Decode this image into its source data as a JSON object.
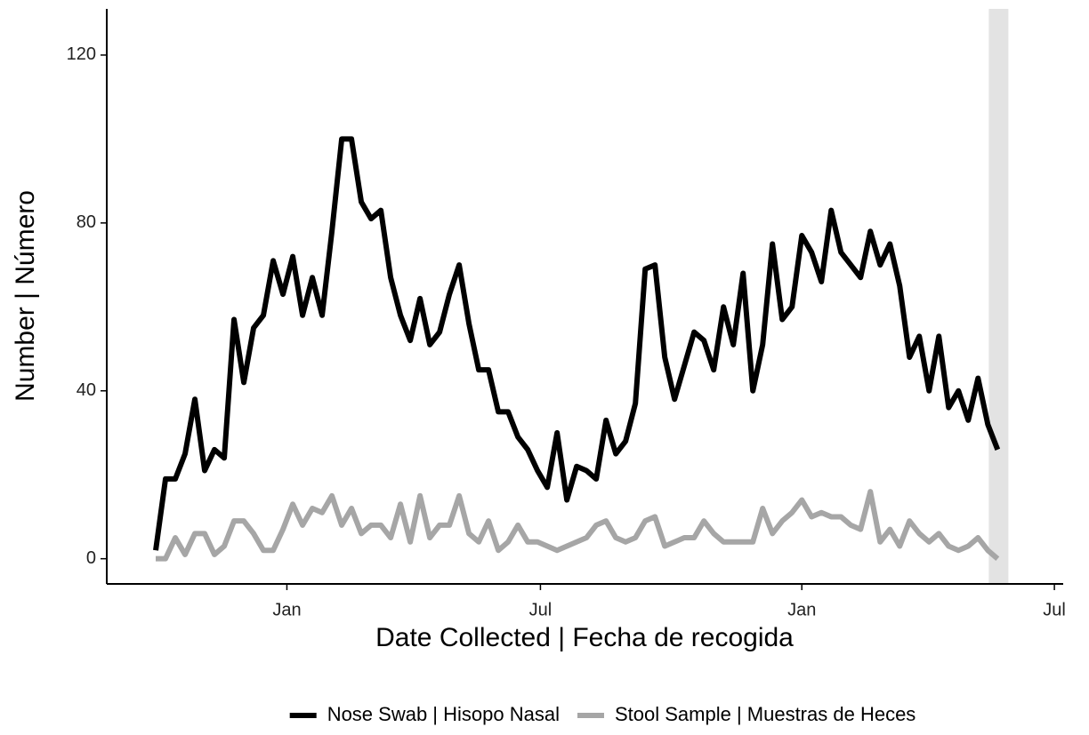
{
  "chart_data": {
    "type": "line",
    "x_label": "Date Collected | Fecha de recogida",
    "y_label": "Number | Número",
    "x": [
      0,
      1,
      2,
      3,
      4,
      5,
      6,
      7,
      8,
      9,
      10,
      11,
      12,
      13,
      14,
      15,
      16,
      17,
      18,
      19,
      20,
      21,
      22,
      23,
      24,
      25,
      26,
      27,
      28,
      29,
      30,
      31,
      32,
      33,
      34,
      35,
      36,
      37,
      38,
      39,
      40,
      41,
      42,
      43,
      44,
      45,
      46,
      47,
      48,
      49,
      50,
      51,
      52,
      53,
      54,
      55,
      56,
      57,
      58,
      59,
      60,
      61,
      62,
      63,
      64,
      65,
      66,
      67,
      68,
      69,
      70,
      71,
      72,
      73,
      74,
      75,
      76,
      77,
      78,
      79,
      80,
      81,
      82,
      83,
      84,
      85,
      86
    ],
    "series": [
      {
        "name": "Nose Swab | Hisopo Nasal",
        "color": "#000000",
        "values": [
          2,
          19,
          19,
          25,
          38,
          21,
          26,
          24,
          57,
          42,
          55,
          58,
          71,
          63,
          72,
          58,
          67,
          58,
          78,
          100,
          100,
          85,
          81,
          83,
          67,
          58,
          52,
          62,
          51,
          54,
          63,
          70,
          56,
          45,
          45,
          35,
          35,
          29,
          26,
          21,
          17,
          30,
          14,
          22,
          21,
          19,
          33,
          25,
          28,
          37,
          69,
          70,
          48,
          38,
          46,
          54,
          52,
          45,
          60,
          51,
          68,
          40,
          51,
          75,
          57,
          60,
          77,
          73,
          66,
          83,
          73,
          70,
          67,
          78,
          70,
          75,
          65,
          48,
          53,
          40,
          53,
          36,
          40,
          33,
          43,
          32,
          26
        ]
      },
      {
        "name": "Stool Sample | Muestras de Heces",
        "color": "#a6a6a6",
        "values": [
          0,
          0,
          5,
          1,
          6,
          6,
          1,
          3,
          9,
          9,
          6,
          2,
          2,
          7,
          13,
          8,
          12,
          11,
          15,
          8,
          12,
          6,
          8,
          8,
          5,
          13,
          4,
          15,
          5,
          8,
          8,
          15,
          6,
          4,
          9,
          2,
          4,
          8,
          4,
          4,
          3,
          2,
          3,
          4,
          5,
          8,
          9,
          5,
          4,
          5,
          9,
          10,
          3,
          4,
          5,
          5,
          9,
          6,
          4,
          4,
          4,
          4,
          12,
          6,
          9,
          11,
          14,
          10,
          11,
          10,
          10,
          8,
          7,
          16,
          4,
          7,
          3,
          9,
          6,
          4,
          6,
          3,
          2,
          3,
          5,
          2,
          0
        ]
      }
    ],
    "shaded_region": [
      85.1,
      87.1
    ],
    "shade_color": "#e3e3e3",
    "xlim": [
      -5,
      92.7
    ],
    "xticks": [
      {
        "value": 13.4,
        "label": "Jan"
      },
      {
        "value": 39.3,
        "label": "Jul"
      },
      {
        "value": 66.0,
        "label": "Jan"
      },
      {
        "value": 91.8,
        "label": "Jul"
      }
    ],
    "ylim": [
      -6,
      131
    ],
    "yticks": [
      0,
      40,
      80,
      120
    ],
    "grid": false,
    "legend": "bottom"
  }
}
